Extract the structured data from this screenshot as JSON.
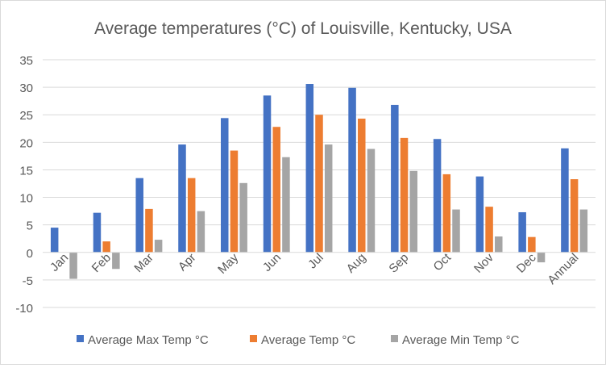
{
  "chart_data": {
    "type": "bar",
    "title": "Average temperatures (°C) of Louisville, Kentucky, USA",
    "xlabel": "",
    "ylabel": "",
    "ylim": [
      -10,
      35
    ],
    "yticks": [
      -10,
      -5,
      0,
      5,
      10,
      15,
      20,
      25,
      30,
      35
    ],
    "grid": true,
    "legend_position": "bottom",
    "categories": [
      "Jan",
      "Feb",
      "Mar",
      "Apr",
      "May",
      "Jun",
      "Jul",
      "Aug",
      "Sep",
      "Oct",
      "Nov",
      "Dec",
      "Annual"
    ],
    "series": [
      {
        "name": "Average Max Temp °C",
        "color": "#4472c4",
        "values": [
          4.5,
          7.2,
          13.5,
          19.6,
          24.4,
          28.5,
          30.6,
          29.9,
          26.8,
          20.6,
          13.8,
          7.3,
          18.9
        ]
      },
      {
        "name": "Average Temp °C",
        "color": "#ed7d31",
        "values": [
          0.0,
          2.0,
          7.9,
          13.5,
          18.5,
          22.8,
          25.0,
          24.3,
          20.8,
          14.2,
          8.3,
          2.8,
          13.3
        ]
      },
      {
        "name": "Average Min Temp °C",
        "color": "#a5a5a5",
        "values": [
          -4.8,
          -3.0,
          2.3,
          7.5,
          12.6,
          17.3,
          19.6,
          18.8,
          14.8,
          7.8,
          2.9,
          -1.8,
          7.8
        ]
      }
    ]
  }
}
